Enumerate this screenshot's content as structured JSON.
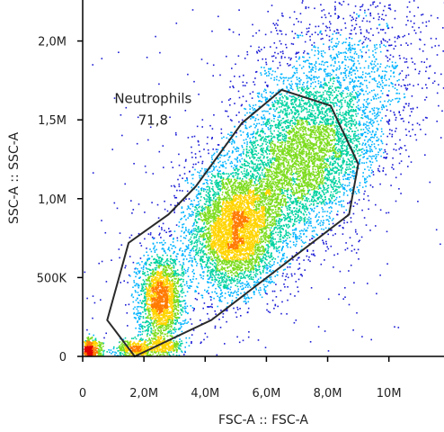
{
  "chart_data": {
    "type": "scatter",
    "subtype": "flow-cytometry-density-dot-plot",
    "title": "",
    "xlabel": "FSC-A :: FSC-A",
    "ylabel": "SSC-A :: SSC-A",
    "xlim": [
      0,
      11800000
    ],
    "ylim": [
      0,
      2260000
    ],
    "x_ticks": [
      {
        "value": 0,
        "label": "0"
      },
      {
        "value": 2000000,
        "label": "2,0M"
      },
      {
        "value": 4000000,
        "label": "4,0M"
      },
      {
        "value": 6000000,
        "label": "6,0M"
      },
      {
        "value": 8000000,
        "label": "8,0M"
      },
      {
        "value": 10000000,
        "label": "10M"
      }
    ],
    "y_ticks": [
      {
        "value": 0,
        "label": "0"
      },
      {
        "value": 500000,
        "label": "500K"
      },
      {
        "value": 1000000,
        "label": "1,0M"
      },
      {
        "value": 1500000,
        "label": "1,5M"
      },
      {
        "value": 2000000,
        "label": "2,0M"
      }
    ],
    "grid": false,
    "color_scale": [
      "#1b1bd6",
      "#00b4ff",
      "#00d2a0",
      "#7ddc1f",
      "#ffd400",
      "#ff7a00",
      "#e00000"
    ],
    "populations": [
      {
        "x": 200000,
        "y": 40000,
        "sx": 220000,
        "sy": 40000,
        "weight": 0.04,
        "peak": "high"
      },
      {
        "x": 1700000,
        "y": 50000,
        "sx": 300000,
        "sy": 30000,
        "weight": 0.03,
        "peak": "medium"
      },
      {
        "x": 2600000,
        "y": 70000,
        "sx": 300000,
        "sy": 30000,
        "weight": 0.02,
        "peak": "medium"
      },
      {
        "x": 2550000,
        "y": 370000,
        "sx": 380000,
        "sy": 150000,
        "weight": 0.14,
        "peak": "high"
      },
      {
        "x": 4900000,
        "y": 800000,
        "sx": 750000,
        "sy": 200000,
        "weight": 0.28,
        "peak": "medium"
      },
      {
        "x": 7100000,
        "y": 1250000,
        "sx": 1300000,
        "sy": 260000,
        "weight": 0.33,
        "peak": "low"
      },
      {
        "x": 8000000,
        "y": 1700000,
        "sx": 1900000,
        "sy": 380000,
        "weight": 0.12,
        "peak": "sparse"
      },
      {
        "x": 5500000,
        "y": 900000,
        "sx": 3500000,
        "sy": 650000,
        "weight": 0.04,
        "peak": "sparse"
      }
    ],
    "gates": [
      {
        "name": "Neutrophils",
        "value": "71,8",
        "polygon": [
          [
            800000,
            230000
          ],
          [
            1500000,
            720000
          ],
          [
            2800000,
            900000
          ],
          [
            3700000,
            1080000
          ],
          [
            5200000,
            1480000
          ],
          [
            6500000,
            1690000
          ],
          [
            8100000,
            1590000
          ],
          [
            9000000,
            1220000
          ],
          [
            8700000,
            900000
          ],
          [
            4200000,
            230000
          ],
          [
            1700000,
            0
          ]
        ],
        "label_at": [
          2300000,
          1640000
        ]
      }
    ]
  }
}
